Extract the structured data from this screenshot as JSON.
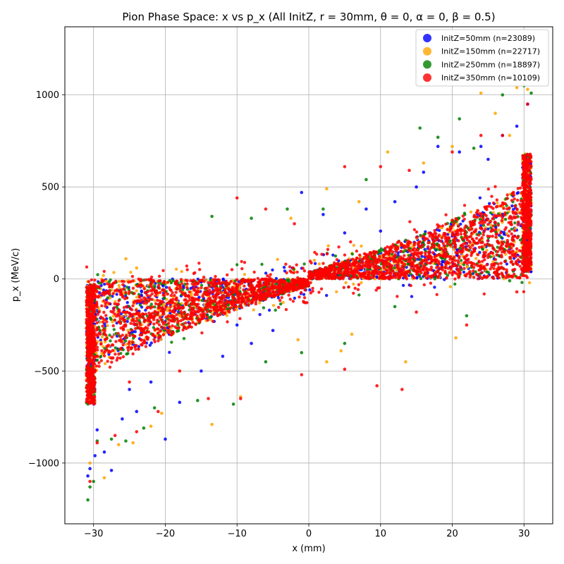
{
  "chart_data": {
    "type": "scatter",
    "title": "Pion Phase Space: x vs p_x (All InitZ, r = 30mm, θ = 0, α = 0, β = 0.5)",
    "xlabel": "x (mm)",
    "ylabel": "p_x (MeV/c)",
    "xlim": [
      -34,
      34
    ],
    "ylim": [
      -1330,
      1370
    ],
    "xticks": [
      -30,
      -20,
      -10,
      0,
      10,
      20,
      30
    ],
    "yticks": [
      -1000,
      -500,
      0,
      500,
      1000
    ],
    "xtick_labels": [
      "−30",
      "−20",
      "−10",
      "0",
      "10",
      "20",
      "30"
    ],
    "ytick_labels": [
      "−1000",
      "−500",
      "0",
      "500",
      "1000"
    ],
    "grid": true,
    "legend_position": "top-right",
    "series": [
      {
        "name": "InitZ=50mm (n=23089)",
        "color": "#0000ff",
        "points": [
          [
            -30.8,
            -1070
          ],
          [
            -30.5,
            -1030
          ],
          [
            -29.8,
            -960
          ],
          [
            -28.5,
            -940
          ],
          [
            -27.5,
            -1040
          ],
          [
            -29.5,
            -820
          ],
          [
            -26.0,
            -760
          ],
          [
            -24.0,
            -720
          ],
          [
            -20.0,
            -870
          ],
          [
            -18.0,
            -670
          ],
          [
            -15.0,
            -500
          ],
          [
            -12.0,
            -420
          ],
          [
            -8.0,
            -350
          ],
          [
            -5.0,
            -280
          ],
          [
            -1.0,
            470
          ],
          [
            2.0,
            350
          ],
          [
            5.0,
            250
          ],
          [
            8.0,
            380
          ],
          [
            12.0,
            420
          ],
          [
            15.0,
            500
          ],
          [
            18.0,
            720
          ],
          [
            21.0,
            690
          ],
          [
            24.0,
            720
          ],
          [
            27.0,
            780
          ],
          [
            29.0,
            830
          ],
          [
            30.5,
            950
          ],
          [
            -25.0,
            -600
          ],
          [
            -22.0,
            -560
          ],
          [
            -10.0,
            -250
          ],
          [
            10.0,
            260
          ],
          [
            25.0,
            650
          ],
          [
            16.0,
            580
          ]
        ]
      },
      {
        "name": "InitZ=150mm (n=22717)",
        "color": "#ffa500",
        "points": [
          [
            -30.5,
            -1000
          ],
          [
            -28.5,
            -1080
          ],
          [
            -26.5,
            -900
          ],
          [
            -24.5,
            -890
          ],
          [
            -22.0,
            -800
          ],
          [
            -20.5,
            -730
          ],
          [
            -13.5,
            -790
          ],
          [
            -9.5,
            -640
          ],
          [
            -1.5,
            -330
          ],
          [
            2.5,
            -450
          ],
          [
            4.5,
            -390
          ],
          [
            -2.5,
            330
          ],
          [
            2.5,
            490
          ],
          [
            7.0,
            420
          ],
          [
            11.0,
            690
          ],
          [
            16.0,
            630
          ],
          [
            20.0,
            720
          ],
          [
            24.0,
            1010
          ],
          [
            26.0,
            900
          ],
          [
            29.0,
            1040
          ],
          [
            30.5,
            1030
          ],
          [
            -25.5,
            110
          ],
          [
            -24.0,
            60
          ],
          [
            -18.0,
            -200
          ],
          [
            6.0,
            -300
          ],
          [
            13.5,
            -450
          ],
          [
            20.5,
            -320
          ],
          [
            28.0,
            780
          ]
        ]
      },
      {
        "name": "InitZ=250mm (n=18897)",
        "color": "#008000",
        "points": [
          [
            -30.8,
            -1200
          ],
          [
            -30.5,
            -1130
          ],
          [
            -30.0,
            -1100
          ],
          [
            -29.5,
            -880
          ],
          [
            -27.5,
            -870
          ],
          [
            -25.5,
            -880
          ],
          [
            -23.0,
            -810
          ],
          [
            -21.5,
            -700
          ],
          [
            -15.5,
            -660
          ],
          [
            -10.5,
            -680
          ],
          [
            -13.5,
            340
          ],
          [
            -8.0,
            330
          ],
          [
            -3.0,
            380
          ],
          [
            2.0,
            380
          ],
          [
            8.0,
            540
          ],
          [
            15.5,
            820
          ],
          [
            18.0,
            770
          ],
          [
            21.0,
            870
          ],
          [
            23.0,
            710
          ],
          [
            27.0,
            1000
          ],
          [
            30.0,
            1050
          ],
          [
            31.0,
            1010
          ],
          [
            -6.0,
            -450
          ],
          [
            -1.0,
            -400
          ],
          [
            5.0,
            -350
          ],
          [
            12.0,
            -150
          ],
          [
            22.0,
            -200
          ],
          [
            28.0,
            -10
          ]
        ]
      },
      {
        "name": "InitZ=350mm (n=10109)",
        "color": "#ff0000",
        "points": [
          [
            -30.5,
            -1100
          ],
          [
            -29.5,
            -890
          ],
          [
            -27.0,
            -850
          ],
          [
            -24.0,
            -830
          ],
          [
            -21.0,
            -720
          ],
          [
            -14.0,
            -650
          ],
          [
            -9.5,
            -650
          ],
          [
            -1.0,
            -520
          ],
          [
            5.0,
            -490
          ],
          [
            9.5,
            -580
          ],
          [
            13.0,
            -600
          ],
          [
            -10.0,
            440
          ],
          [
            -6.0,
            380
          ],
          [
            -2.0,
            300
          ],
          [
            5.0,
            610
          ],
          [
            10.0,
            610
          ],
          [
            14.0,
            590
          ],
          [
            20.0,
            690
          ],
          [
            24.0,
            780
          ],
          [
            27.0,
            780
          ],
          [
            30.5,
            950
          ],
          [
            -25.0,
            -560
          ],
          [
            -18.0,
            -500
          ],
          [
            15.0,
            -180
          ],
          [
            22.0,
            -250
          ],
          [
            29.0,
            -70
          ]
        ]
      }
    ]
  }
}
